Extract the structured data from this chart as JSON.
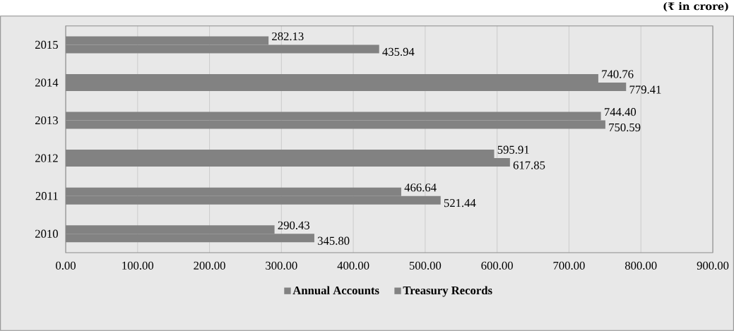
{
  "chart_data": {
    "type": "bar",
    "orientation": "horizontal",
    "annotations": [
      "(₹ in crore)"
    ],
    "categories": [
      "2015",
      "2014",
      "2013",
      "2012",
      "2011",
      "2010"
    ],
    "series": [
      {
        "name": "Annual Accounts",
        "color": "#828282",
        "values": [
          282.13,
          740.76,
          744.4,
          595.91,
          466.64,
          290.43
        ],
        "value_labels": [
          "282.13",
          "740.76",
          "744.40",
          "595.91",
          "466.64",
          "290.43"
        ]
      },
      {
        "name": "Treasury Records",
        "color": "#828282",
        "values": [
          435.94,
          779.41,
          750.59,
          617.85,
          521.44,
          345.8
        ],
        "value_labels": [
          "435.94",
          "779.41",
          "750.59",
          "617.85",
          "521.44",
          "345.80"
        ]
      }
    ],
    "xlim": [
      0,
      900
    ],
    "xticks": [
      {
        "value": 0,
        "label": "0.00"
      },
      {
        "value": 100,
        "label": "100.00"
      },
      {
        "value": 200,
        "label": "200.00"
      },
      {
        "value": 300,
        "label": "300.00"
      },
      {
        "value": 400,
        "label": "400.00"
      },
      {
        "value": 500,
        "label": "500.00"
      },
      {
        "value": 600,
        "label": "600.00"
      },
      {
        "value": 700,
        "label": "700.00"
      },
      {
        "value": 800,
        "label": "800.00"
      },
      {
        "value": 900,
        "label": "900.00"
      }
    ],
    "grid": "x",
    "legend": "bottom"
  }
}
